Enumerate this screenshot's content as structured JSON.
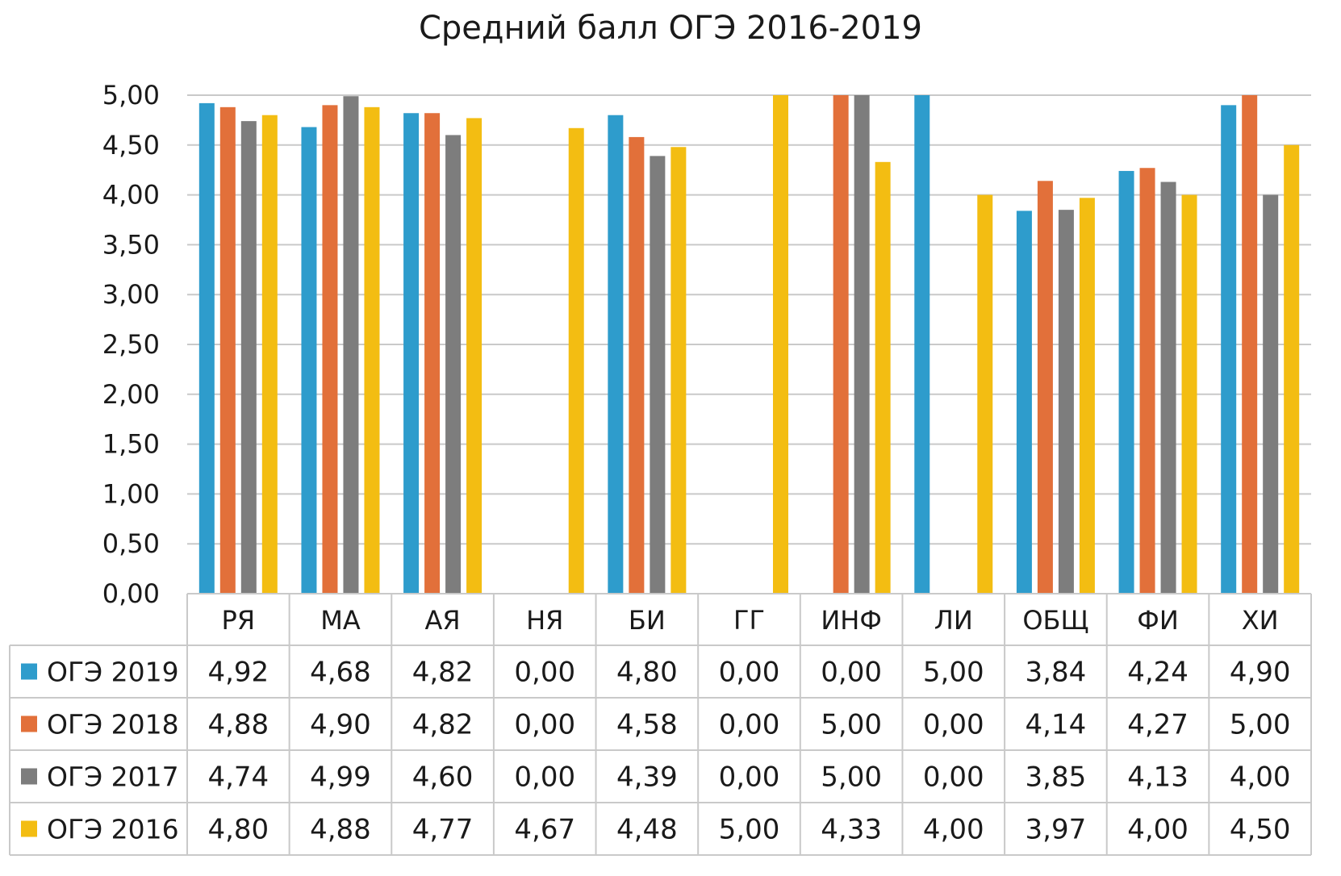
{
  "chart_data": {
    "type": "bar",
    "title": "Средний балл ОГЭ 2016-2019",
    "categories": [
      "РЯ",
      "МА",
      "АЯ",
      "НЯ",
      "БИ",
      "ГГ",
      "ИНФ",
      "ЛИ",
      "ОБЩ",
      "ФИ",
      "ХИ"
    ],
    "y_ticks": [
      "0,00",
      "0,50",
      "1,00",
      "1,50",
      "2,00",
      "2,50",
      "3,00",
      "3,50",
      "4,00",
      "4,50",
      "5,00"
    ],
    "ylim": [
      0,
      5
    ],
    "grid": true,
    "legend": "data-table",
    "series": [
      {
        "name": "ОГЭ 2019",
        "color": "#2e9ccc",
        "values": [
          4.92,
          4.68,
          4.82,
          0.0,
          4.8,
          0.0,
          0.0,
          5.0,
          3.84,
          4.24,
          4.9
        ],
        "labels": [
          "4,92",
          "4,68",
          "4,82",
          "0,00",
          "4,80",
          "0,00",
          "0,00",
          "5,00",
          "3,84",
          "4,24",
          "4,90"
        ]
      },
      {
        "name": "ОГЭ 2018",
        "color": "#e2703a",
        "values": [
          4.88,
          4.9,
          4.82,
          0.0,
          4.58,
          0.0,
          5.0,
          0.0,
          4.14,
          4.27,
          5.0
        ],
        "labels": [
          "4,88",
          "4,90",
          "4,82",
          "0,00",
          "4,58",
          "0,00",
          "5,00",
          "0,00",
          "4,14",
          "4,27",
          "5,00"
        ]
      },
      {
        "name": "ОГЭ 2017",
        "color": "#7d7d7d",
        "values": [
          4.74,
          4.99,
          4.6,
          0.0,
          4.39,
          0.0,
          5.0,
          0.0,
          3.85,
          4.13,
          4.0
        ],
        "labels": [
          "4,74",
          "4,99",
          "4,60",
          "0,00",
          "4,39",
          "0,00",
          "5,00",
          "0,00",
          "3,85",
          "4,13",
          "4,00"
        ]
      },
      {
        "name": "ОГЭ 2016",
        "color": "#f3bd12",
        "values": [
          4.8,
          4.88,
          4.77,
          4.67,
          4.48,
          5.0,
          4.33,
          4.0,
          3.97,
          4.0,
          4.5
        ],
        "labels": [
          "4,80",
          "4,88",
          "4,77",
          "4,67",
          "4,48",
          "5,00",
          "4,33",
          "4,00",
          "3,97",
          "4,00",
          "4,50"
        ]
      }
    ]
  }
}
